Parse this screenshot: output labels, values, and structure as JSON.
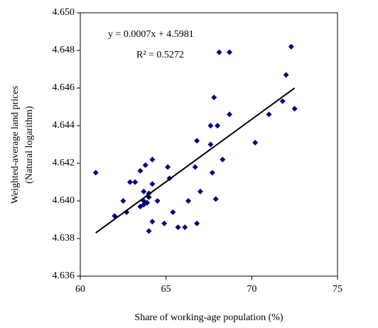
{
  "chart_data": {
    "type": "scatter",
    "x_label": "Share of working-age population (%)",
    "y_label": [
      "Weighted-average land prices",
      "(Natural logarithm)"
    ],
    "annotations": [
      "y = 0.0007x + 4.5981",
      "R² = 0.5272"
    ],
    "series": [
      {
        "color": "#000080",
        "x": [
          60.9,
          62.0,
          62.5,
          62.7,
          62.9,
          63.2,
          63.5,
          63.5,
          63.7,
          63.8,
          63.7,
          63.9,
          64.0,
          64.0,
          64.2,
          64.2,
          64.2,
          64.5,
          64.9,
          65.1,
          65.2,
          65.4,
          65.7,
          66.1,
          66.3,
          66.7,
          66.8,
          66.8,
          67.0,
          67.6,
          67.6,
          67.7,
          67.8,
          67.9,
          68.0,
          68.1,
          68.3,
          68.7,
          68.7,
          70.2,
          71.0,
          71.8,
          72.0,
          72.3,
          72.5,
          63.7,
          64.0
        ],
        "values": [
          4.6415,
          4.6392,
          4.64,
          4.6394,
          4.641,
          4.641,
          4.6416,
          4.6397,
          4.6405,
          4.6419,
          4.6398,
          4.6399,
          4.6402,
          4.6384,
          4.6409,
          4.6422,
          4.6389,
          4.64,
          4.6388,
          4.6418,
          4.6412,
          4.6394,
          4.6386,
          4.6386,
          4.64,
          4.6418,
          4.6432,
          4.6388,
          4.6405,
          4.643,
          4.644,
          4.6415,
          4.6455,
          4.6401,
          4.644,
          4.6479,
          4.6422,
          4.6479,
          4.6446,
          4.6431,
          4.6446,
          4.6453,
          4.6467,
          4.6482,
          4.6449,
          4.64,
          4.6404
        ]
      }
    ],
    "trendline": {
      "color": "#000000",
      "x": [
        60.9,
        72.5
      ],
      "values": [
        4.6383,
        4.646
      ]
    },
    "xlim": [
      60,
      75
    ],
    "xticks": [
      60,
      65,
      70,
      75
    ],
    "ylim": [
      4.636,
      4.65
    ],
    "yticks": [
      {
        "value": 4.636,
        "label": "4.636"
      },
      {
        "value": 4.638,
        "label": "4.638"
      },
      {
        "value": 4.64,
        "label": "4.640"
      },
      {
        "value": 4.642,
        "label": "4.642"
      },
      {
        "value": 4.644,
        "label": "4.644"
      },
      {
        "value": 4.646,
        "label": "4.646"
      },
      {
        "value": 4.648,
        "label": "4.648"
      },
      {
        "value": 4.65,
        "label": "4.650"
      }
    ]
  }
}
